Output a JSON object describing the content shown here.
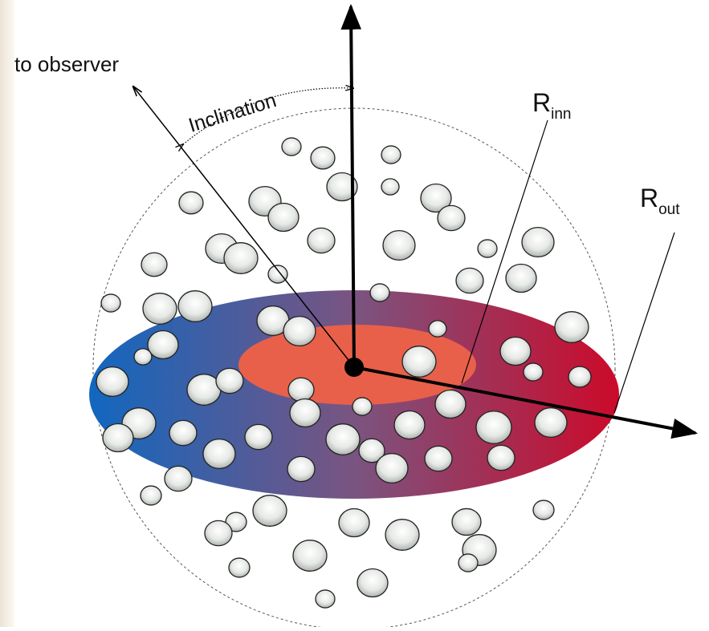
{
  "labels": {
    "observer": "to observer",
    "inclination": "Inclination",
    "r_inner": {
      "main": "R",
      "sub": "inn"
    },
    "r_outer": {
      "main": "R",
      "sub": "out"
    }
  }
}
